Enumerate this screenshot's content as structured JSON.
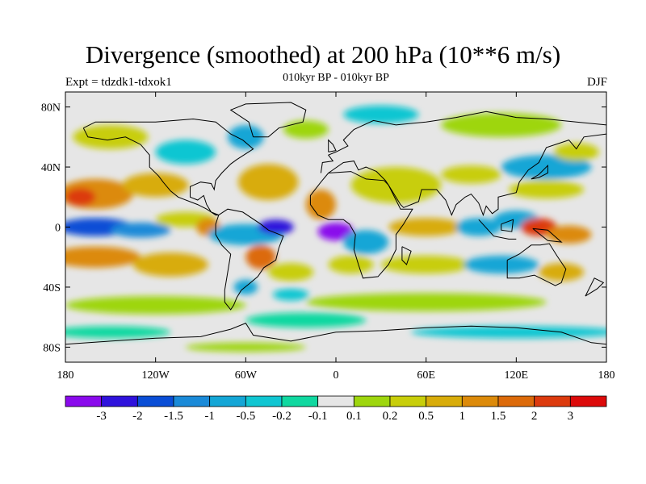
{
  "title": "Divergence (smoothed) at 200 hPa (10**6 m/s)",
  "subtitle": "010kyr BP - 010kyr BP",
  "expt_label": "Expt = tdzdk1-tdxok1",
  "season": "DJF",
  "lat_ticks": [
    "80N",
    "40N",
    "0",
    "40S",
    "80S"
  ],
  "lon_ticks": [
    "180",
    "120W",
    "60W",
    "0",
    "60E",
    "120E",
    "180"
  ],
  "colorbar": {
    "colors": [
      "#8a0aec",
      "#2f12dc",
      "#0a4ed6",
      "#1a8ad8",
      "#14a6d6",
      "#10c6d2",
      "#10d8a0",
      "#e6e6e6",
      "#9ed60e",
      "#c8ce0a",
      "#d8ac0a",
      "#dc8a0a",
      "#dc6a0a",
      "#dc3a0e",
      "#dc0a0a"
    ],
    "labels": [
      "-3",
      "-2",
      "-1.5",
      "-1",
      "-0.5",
      "-0.2",
      "-0.1",
      "0.1",
      "0.2",
      "0.5",
      "1",
      "1.5",
      "2",
      "3"
    ]
  },
  "chart_data": {
    "type": "heatmap",
    "title": "Divergence (smoothed) at 200 hPa (10**6 m/s)",
    "subtitle": "010kyr BP - 010kyr BP",
    "units": "10**6 m/s",
    "x_range_deg_lon": [
      -180,
      180
    ],
    "y_range_deg_lat": [
      -90,
      90
    ],
    "approximate_features": [
      {
        "region": "Maritime Continent / W Pacific equator",
        "lon": 130,
        "lat": 0,
        "value": 2
      },
      {
        "region": "Central-east Atlantic equator",
        "lon": 5,
        "lat": -5,
        "value": -3
      },
      {
        "region": "NE Brazil / W Atlantic",
        "lon": -45,
        "lat": 0,
        "value": -2
      },
      {
        "region": "Central-east Pacific equator",
        "lon": -150,
        "lat": 0,
        "value": -1.5
      },
      {
        "region": "W Africa / E Atlantic subtropics",
        "lon": -10,
        "lat": 15,
        "value": 1.5
      },
      {
        "region": "Central Pacific subtropics N",
        "lon": -160,
        "lat": 20,
        "value": 1.5
      },
      {
        "region": "South America SE coast",
        "lon": -50,
        "lat": -20,
        "value": 1.5
      },
      {
        "region": "Indian Ocean equator",
        "lon": 70,
        "lat": 0,
        "value": 1
      },
      {
        "region": "N Africa / Arabia",
        "lon": 40,
        "lat": 20,
        "value": 0.5
      },
      {
        "region": "Southern Ocean band",
        "lon": 0,
        "lat": -50,
        "value": 0.2
      }
    ]
  }
}
